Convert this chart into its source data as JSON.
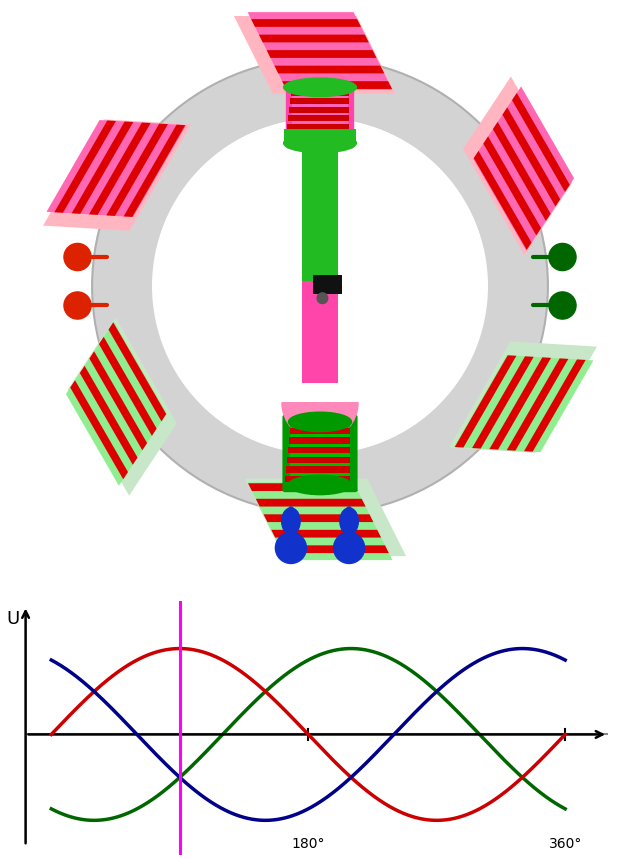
{
  "bg_color": "#ffffff",
  "stator_ring_color": "#d3d3d3",
  "stator_ring_edge": "#b0b0b0",
  "coil_pink": "#ff69b4",
  "coil_pink_bg": "#ffb6c1",
  "coil_green": "#90ee90",
  "coil_green_bg": "#c8e6c8",
  "coil_red_stripe": "#dd0000",
  "rotor_green": "#22bb22",
  "rotor_pink": "#ff44aa",
  "rotor_dark_green": "#119911",
  "brush_black": "#111111",
  "brush_gray": "#444444",
  "terminal_red": "#dd2200",
  "terminal_green": "#006600",
  "terminal_blue": "#1133cc",
  "sine_red": "#cc0000",
  "sine_green": "#006600",
  "sine_blue": "#000088",
  "sine_gray": "#888888",
  "label_180": "180°",
  "label_360": "360°",
  "label_U": "U",
  "magenta": "#ff00ff"
}
